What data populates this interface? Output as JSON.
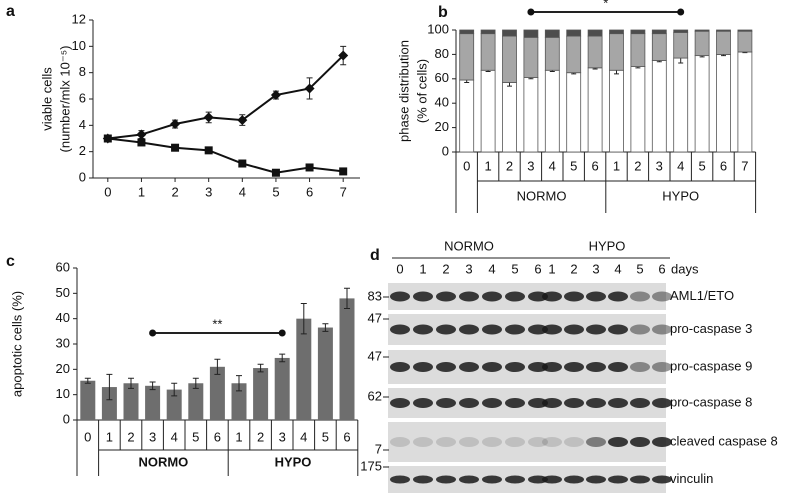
{
  "chart_data": [
    {
      "type": "line",
      "panel": "a",
      "ylabel": [
        "viable cells",
        "(number/mlx 10⁻⁵)"
      ],
      "x": [
        0,
        1,
        2,
        3,
        4,
        5,
        6,
        7
      ],
      "xlim": [
        -0.5,
        7.5
      ],
      "xticks": [
        0,
        1,
        2,
        3,
        4,
        5,
        6,
        7
      ],
      "ylim": [
        0,
        12
      ],
      "yticks": [
        0,
        2,
        4,
        6,
        8,
        10,
        12
      ],
      "series": [
        {
          "color": "#111111",
          "marker": "diamond",
          "values": [
            3.0,
            3.3,
            4.1,
            4.6,
            4.4,
            6.3,
            6.8,
            9.3
          ],
          "errors": [
            0.2,
            0.3,
            0.3,
            0.4,
            0.4,
            0.3,
            0.8,
            0.7
          ]
        },
        {
          "color": "#111111",
          "marker": "square",
          "values": [
            3.0,
            2.7,
            2.3,
            2.1,
            1.1,
            0.4,
            0.8,
            0.5
          ],
          "errors": [
            0.1,
            0.1,
            0.1,
            0.1,
            0.1,
            0.1,
            0.1,
            0.1
          ]
        }
      ]
    },
    {
      "type": "stacked_bar",
      "panel": "b",
      "ylabel": [
        "phase distribution",
        "(% of cells)"
      ],
      "groups": [
        {
          "categories": [
            "0"
          ]
        },
        {
          "name": "NORMO",
          "categories": [
            "1",
            "2",
            "3",
            "4",
            "5",
            "6"
          ]
        },
        {
          "name": "HYPO",
          "categories": [
            "1",
            "2",
            "3",
            "4",
            "5",
            "6",
            "7"
          ]
        }
      ],
      "ylim": [
        0,
        100
      ],
      "yticks": [
        0,
        20,
        40,
        60,
        80,
        100
      ],
      "annotation": "*",
      "series": [
        {
          "color": "#ffffff",
          "values": [
            59,
            67,
            57,
            61,
            67,
            65,
            69,
            67,
            70,
            75,
            77,
            79,
            80,
            82
          ],
          "errors": [
            2,
            1,
            3,
            1,
            1,
            1,
            1,
            3,
            1,
            1,
            4,
            1,
            1,
            0.5
          ]
        },
        {
          "color": "#a6a6a6",
          "values": [
            38,
            30,
            38,
            33,
            27,
            30,
            26,
            30,
            27,
            22,
            21,
            20,
            19,
            17
          ]
        },
        {
          "color": "#4d4d4d",
          "values": [
            3,
            3,
            5,
            6,
            6,
            5,
            5,
            3,
            3,
            3,
            2,
            1,
            1,
            1
          ]
        }
      ]
    },
    {
      "type": "bar",
      "panel": "c",
      "ylabel": "apoptotic cells (%)",
      "groups": [
        {
          "categories": [
            "0"
          ]
        },
        {
          "name": "NORMO",
          "categories": [
            "1",
            "2",
            "3",
            "4",
            "5",
            "6"
          ]
        },
        {
          "name": "HYPO",
          "categories": [
            "1",
            "2",
            "3",
            "4",
            "5",
            "6"
          ]
        }
      ],
      "values": [
        15.5,
        13,
        14.5,
        13.5,
        12,
        14.5,
        21,
        14.5,
        20.5,
        24.5,
        40,
        36.5,
        48
      ],
      "errors": [
        1,
        5,
        2,
        1.5,
        2.5,
        2,
        3,
        3,
        1.5,
        1.5,
        6,
        1.5,
        4
      ],
      "color": "#6e6e6e",
      "ylim": [
        0,
        60
      ],
      "yticks": [
        0,
        10,
        20,
        30,
        40,
        50,
        60
      ],
      "annotation": "**"
    }
  ],
  "blot": {
    "panel": "d",
    "unit": "days",
    "groups": [
      {
        "name": "NORMO",
        "lanes": [
          "0",
          "1",
          "2",
          "3",
          "4",
          "5",
          "6"
        ]
      },
      {
        "name": "HYPO",
        "lanes": [
          "1",
          "2",
          "3",
          "4",
          "5",
          "6"
        ]
      }
    ],
    "rows": [
      {
        "mw": "83",
        "protein": "AML1/ETO"
      },
      {
        "mw": "47",
        "protein": "pro-caspase 3"
      },
      {
        "mw": "47",
        "protein": "pro-caspase 9"
      },
      {
        "mw": "62",
        "protein": "pro-caspase 8"
      },
      {
        "mw": "7",
        "protein": "cleaved caspase 8"
      },
      {
        "mw": "175",
        "protein": "vinculin"
      }
    ]
  }
}
